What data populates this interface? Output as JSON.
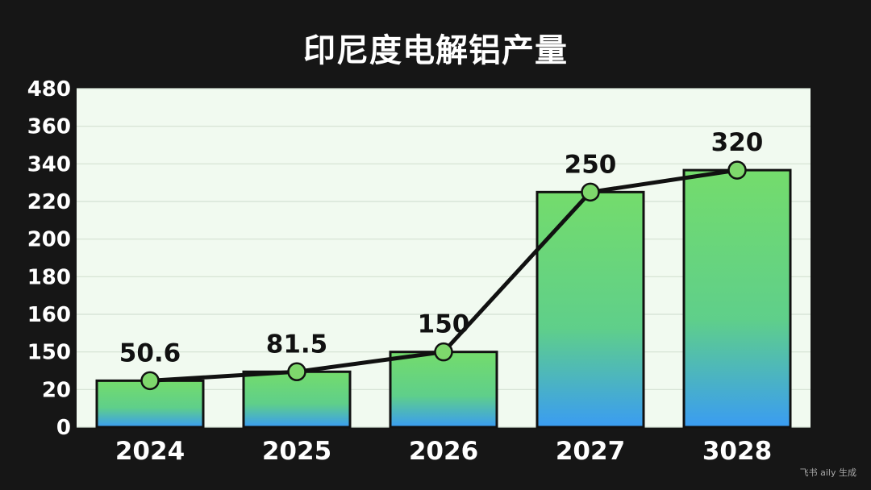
{
  "chart_data": {
    "type": "bar",
    "title": "印尼度电解铝产量",
    "xlabel": "",
    "ylabel": "",
    "categories": [
      "2024",
      "2025",
      "2026",
      "2027",
      "3028"
    ],
    "series": [
      {
        "type": "bar",
        "values": [
          50.6,
          81.5,
          150,
          250,
          320
        ]
      },
      {
        "type": "line",
        "values": [
          50.6,
          81.5,
          150,
          250,
          320
        ]
      }
    ],
    "data_labels": [
      "50.6",
      "81.5",
      "150",
      "250",
      "320"
    ],
    "y_ticks": [
      "0",
      "20",
      "150",
      "160",
      "180",
      "200",
      "220",
      "340",
      "360",
      "480"
    ],
    "grid": true,
    "legend": "none",
    "colors": {
      "bar_top": "#74dc6c",
      "bar_bottom": "#3a9cf2",
      "bar_stroke": "#111111",
      "line": "#111111",
      "marker_fill": "#7ed86c",
      "plot_bg": "#f1faf0",
      "grid": "#d3e0d2"
    }
  },
  "watermark": "飞书 aily 生成"
}
